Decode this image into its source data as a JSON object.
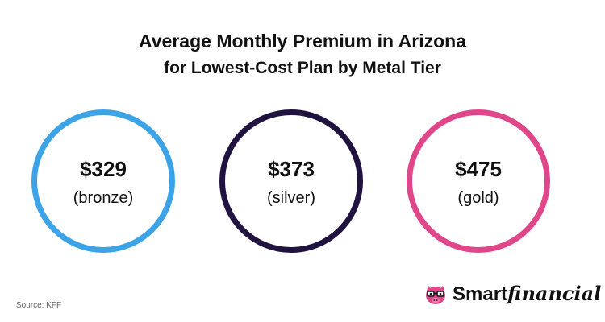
{
  "title": {
    "line1": "Average Monthly Premium in Arizona",
    "line2": "for Lowest-Cost Plan by Metal Tier"
  },
  "tiers": [
    {
      "price": "$329",
      "label": "(bronze)",
      "color": "#3ba3e6",
      "value": 329
    },
    {
      "price": "$373",
      "label": "(silver)",
      "color": "#21133f",
      "value": 373
    },
    {
      "price": "$475",
      "label": "(gold)",
      "color": "#e0468a",
      "value": 475
    }
  ],
  "source": "Source: KFF",
  "logo": {
    "part1": "Smart",
    "part2": "financial",
    "icon": "piggy-bank-glasses-icon",
    "icon_color": "#e0468a"
  }
}
